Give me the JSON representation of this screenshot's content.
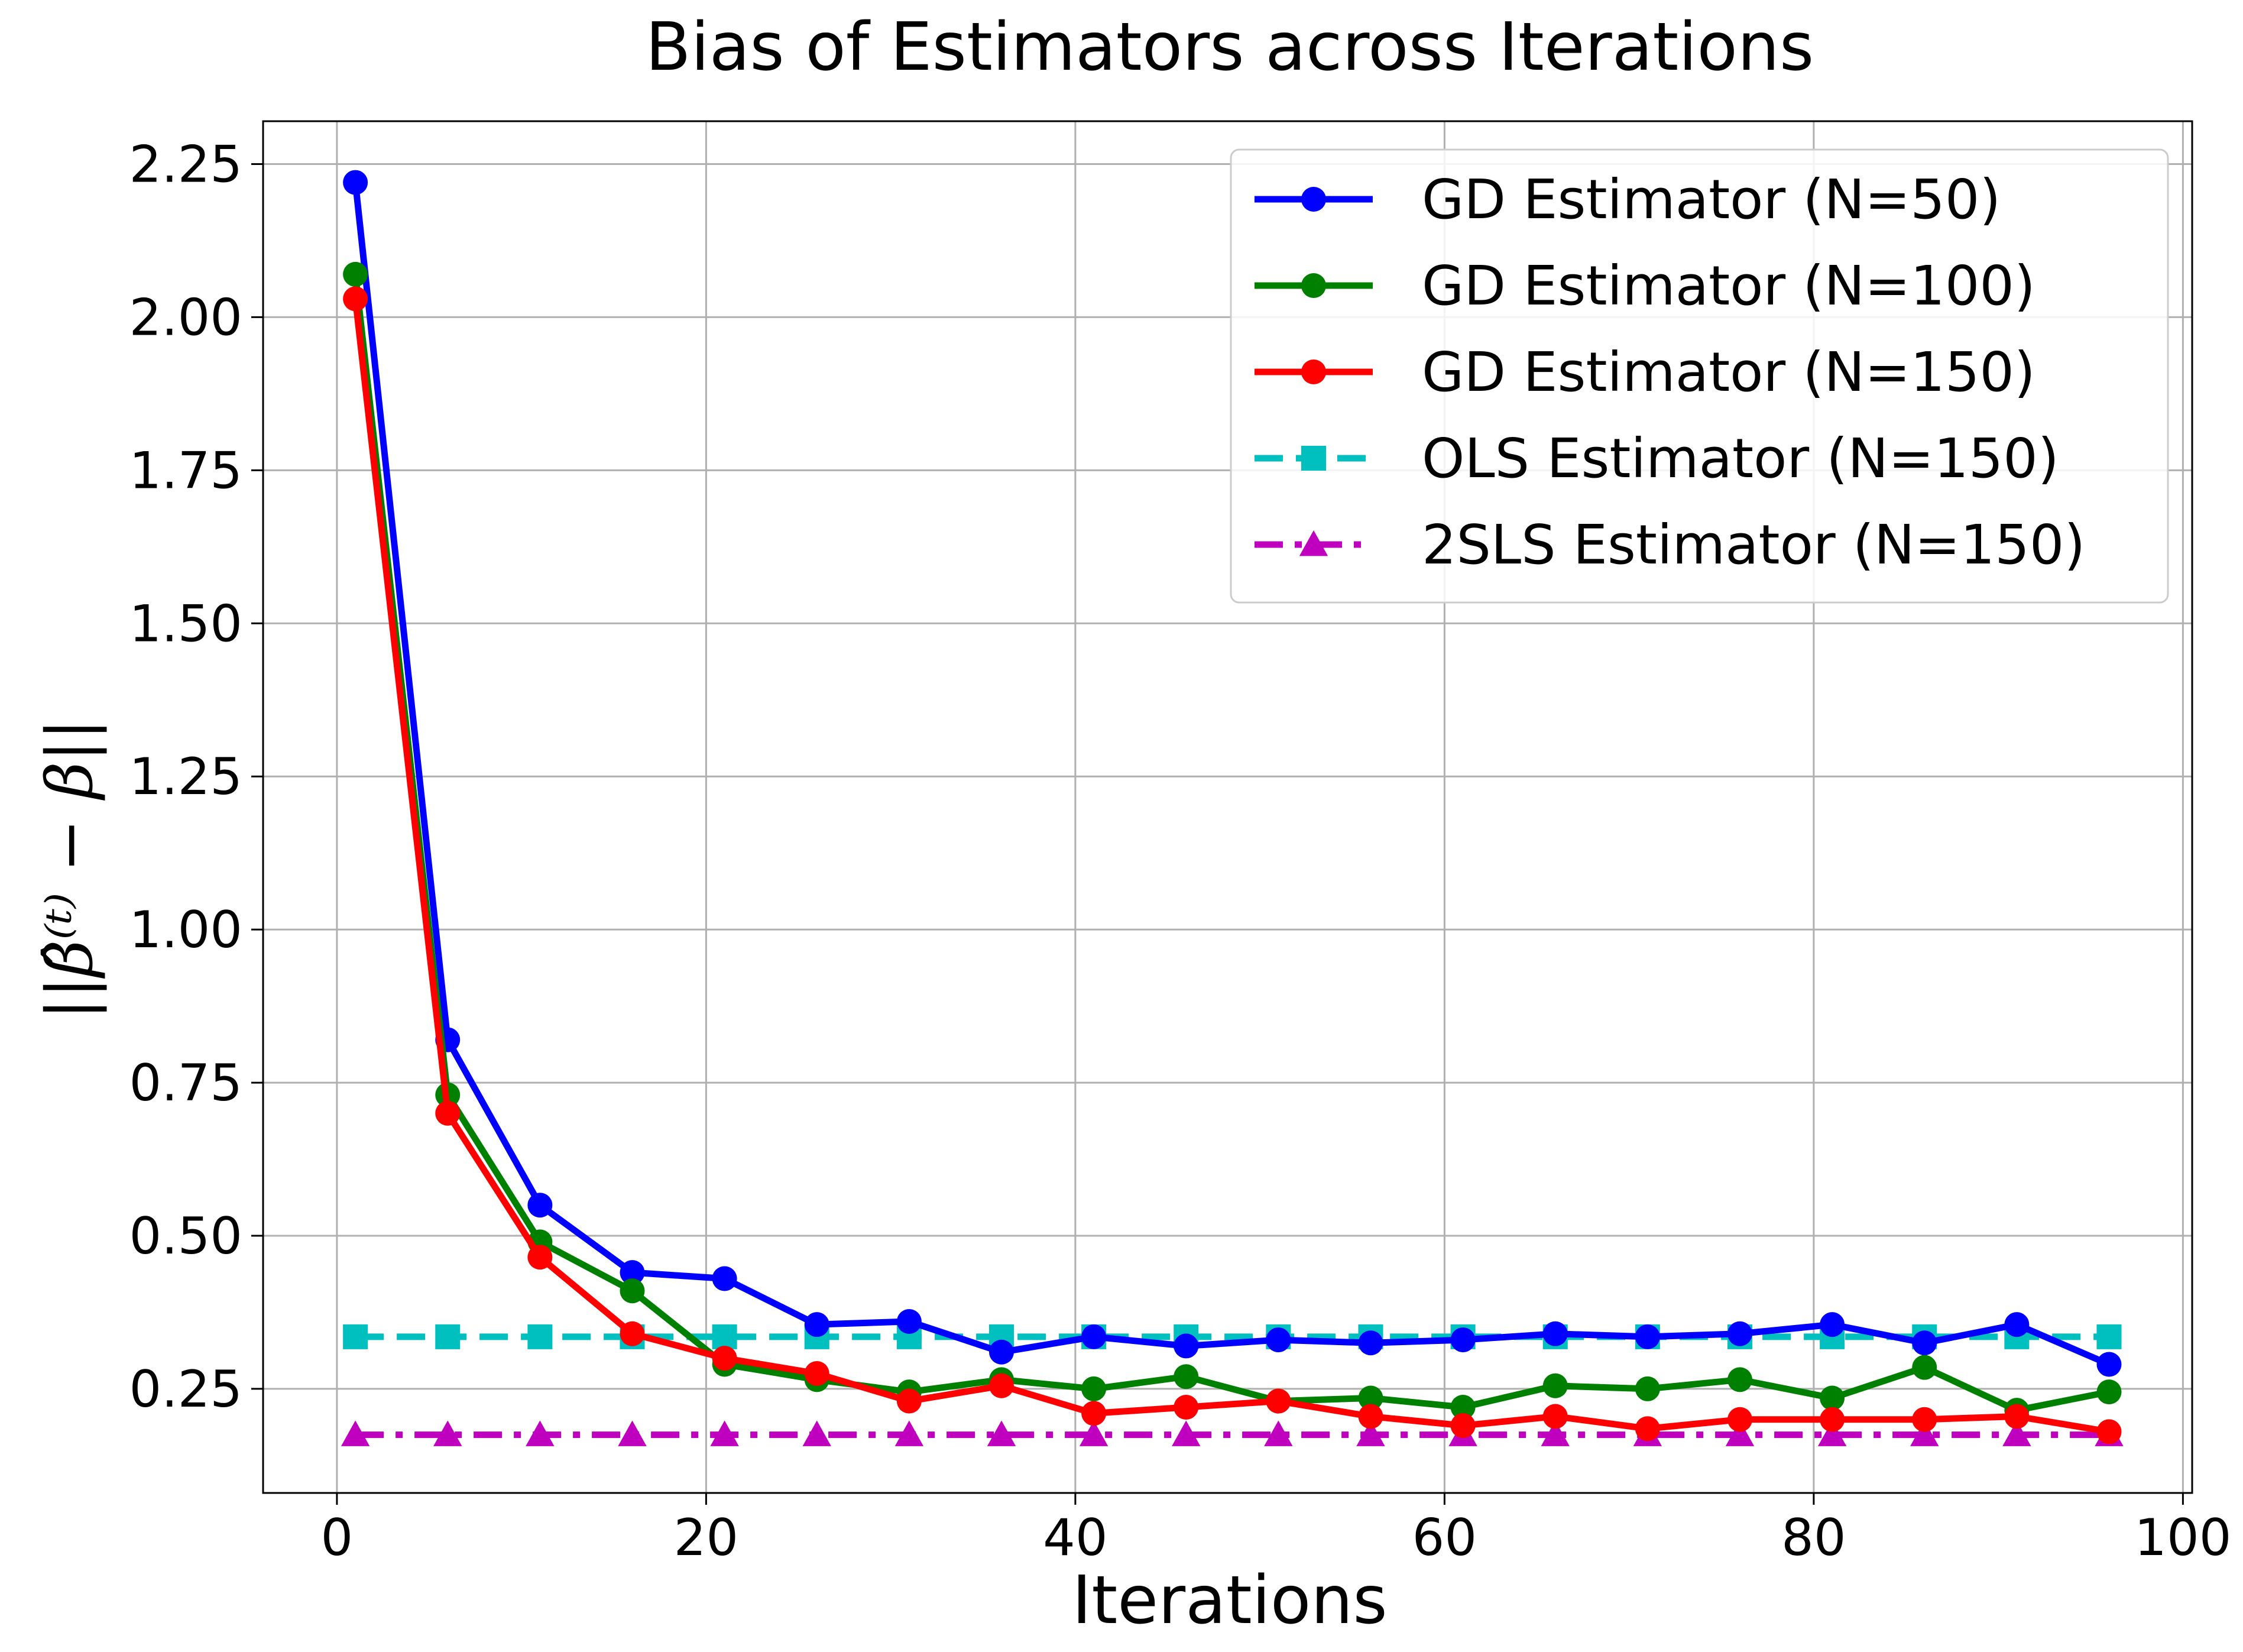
{
  "chart_data": {
    "type": "line",
    "title": "Bias of Estimators across Iterations",
    "xlabel": "Iterations",
    "ylabel": "||β̂⁽ᵗ⁾ − β||",
    "xlim": [
      -4,
      100.5
    ],
    "ylim": [
      0.08,
      2.32
    ],
    "xticks": [
      "0",
      "20",
      "40",
      "60",
      "80",
      "100"
    ],
    "xtick_values": [
      0,
      20,
      40,
      60,
      80,
      100
    ],
    "yticks": [
      "0.25",
      "0.50",
      "0.75",
      "1.00",
      "1.25",
      "1.50",
      "1.75",
      "2.00",
      "2.25"
    ],
    "ytick_values": [
      0.25,
      0.5,
      0.75,
      1.0,
      1.25,
      1.5,
      1.75,
      2.0,
      2.25
    ],
    "grid": true,
    "legend_position": "top-right",
    "x": [
      1,
      6,
      11,
      16,
      21,
      26,
      31,
      36,
      41,
      46,
      51,
      56,
      61,
      66,
      71,
      76,
      81,
      86,
      91,
      96
    ],
    "series": [
      {
        "name": "GD Estimator (N=50)",
        "color": "#0000ff",
        "marker": "circle",
        "linestyle": "solid",
        "values": [
          2.22,
          0.82,
          0.55,
          0.44,
          0.43,
          0.355,
          0.36,
          0.31,
          0.335,
          0.32,
          0.33,
          0.325,
          0.33,
          0.34,
          0.335,
          0.34,
          0.355,
          0.325,
          0.355,
          0.29
        ]
      },
      {
        "name": "GD Estimator (N=100)",
        "color": "#008000",
        "marker": "circle",
        "linestyle": "solid",
        "values": [
          2.07,
          0.73,
          0.49,
          0.41,
          0.29,
          0.265,
          0.245,
          0.265,
          0.25,
          0.27,
          0.23,
          0.235,
          0.22,
          0.255,
          0.25,
          0.265,
          0.235,
          0.285,
          0.215,
          0.245
        ]
      },
      {
        "name": "GD Estimator (N=150)",
        "color": "#ff0000",
        "marker": "circle",
        "linestyle": "solid",
        "values": [
          2.03,
          0.7,
          0.465,
          0.34,
          0.3,
          0.275,
          0.23,
          0.255,
          0.21,
          0.22,
          0.23,
          0.205,
          0.19,
          0.205,
          0.185,
          0.2,
          0.2,
          0.2,
          0.205,
          0.18
        ]
      },
      {
        "name": "OLS Estimator (N=150)",
        "color": "#00bfbf",
        "marker": "square",
        "linestyle": "dashed",
        "values": [
          0.335,
          0.335,
          0.335,
          0.335,
          0.335,
          0.335,
          0.335,
          0.335,
          0.335,
          0.335,
          0.335,
          0.335,
          0.335,
          0.335,
          0.335,
          0.335,
          0.335,
          0.335,
          0.335,
          0.335
        ]
      },
      {
        "name": "2SLS Estimator (N=150)",
        "color": "#bf00bf",
        "marker": "triangle",
        "linestyle": "dashdot",
        "values": [
          0.175,
          0.175,
          0.175,
          0.175,
          0.175,
          0.175,
          0.175,
          0.175,
          0.175,
          0.175,
          0.175,
          0.175,
          0.175,
          0.175,
          0.175,
          0.175,
          0.175,
          0.175,
          0.175,
          0.175
        ]
      }
    ]
  }
}
